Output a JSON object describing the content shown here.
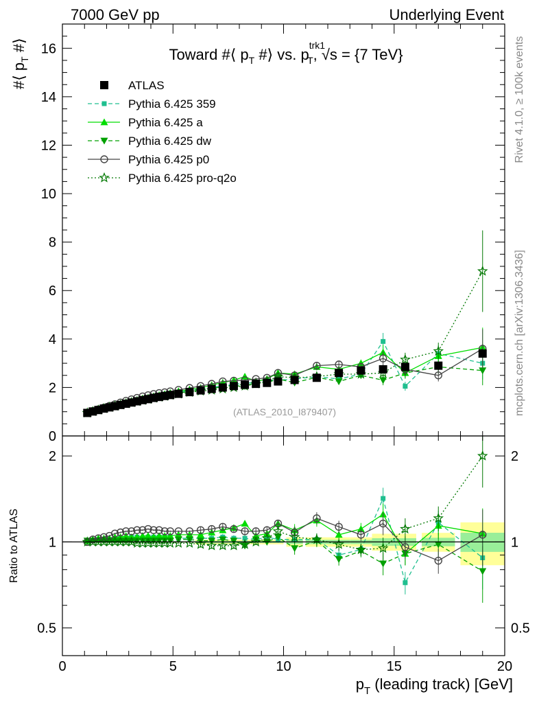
{
  "header": {
    "left": "7000 GeV pp",
    "right": "Underlying Event"
  },
  "side_labels": {
    "rivet": "Rivet 4.1.0, ≥ 100k events",
    "mcplots": "mcplots.cern.ch [arXiv:1306.3436]"
  },
  "chart_data": [
    {
      "type": "scatter",
      "title": {
        "prefix": "Toward #⟨ p",
        "sub1": "T",
        "mid1": " #⟩ vs. p",
        "sup2": "trk1",
        "sub2": "T",
        "suffix": ", √s = {7 TeV}"
      },
      "ylabel": {
        "prefix": "#⟨ p",
        "sub": "T",
        "suffix": " #⟩"
      },
      "watermark": "(ATLAS_2010_I879407)",
      "xlim": [
        0,
        20
      ],
      "ylim": [
        0,
        17
      ],
      "y_ticks": [
        "0",
        "2",
        "4",
        "6",
        "8",
        "10",
        "12",
        "14",
        "16"
      ],
      "x_ticks": [
        "0",
        "5",
        "10",
        "15",
        "20"
      ],
      "x": [
        1.125,
        1.375,
        1.625,
        1.875,
        2.125,
        2.375,
        2.625,
        2.875,
        3.125,
        3.375,
        3.625,
        3.875,
        4.125,
        4.375,
        4.625,
        4.875,
        5.25,
        5.75,
        6.25,
        6.75,
        7.25,
        7.75,
        8.25,
        8.75,
        9.25,
        9.75,
        10.5,
        11.5,
        12.5,
        13.5,
        14.5,
        15.5,
        17.0,
        19.0
      ],
      "series": [
        {
          "name": "ATLAS",
          "style": "data",
          "color": "#000000",
          "values": [
            0.95,
            1.01,
            1.07,
            1.13,
            1.18,
            1.23,
            1.28,
            1.33,
            1.38,
            1.43,
            1.48,
            1.52,
            1.57,
            1.61,
            1.65,
            1.69,
            1.74,
            1.81,
            1.88,
            1.94,
            2.0,
            2.06,
            2.11,
            2.15,
            2.19,
            2.25,
            2.31,
            2.4,
            2.6,
            2.7,
            2.75,
            2.85,
            2.9,
            3.4
          ]
        },
        {
          "name": "Pythia 6.425 359",
          "style": "square-dashed",
          "color": "#1fbf8f",
          "values": [
            0.96,
            1.02,
            1.09,
            1.15,
            1.2,
            1.26,
            1.32,
            1.37,
            1.43,
            1.48,
            1.53,
            1.58,
            1.63,
            1.67,
            1.72,
            1.76,
            1.8,
            1.87,
            1.94,
            2.0,
            2.07,
            2.12,
            2.18,
            2.2,
            2.28,
            2.3,
            2.35,
            2.45,
            2.35,
            2.55,
            3.9,
            2.05,
            3.4,
            3.0
          ]
        },
        {
          "name": "Pythia 6.425 a",
          "style": "triangle-solid",
          "color": "#00dd00",
          "values": [
            0.96,
            1.03,
            1.1,
            1.16,
            1.22,
            1.28,
            1.33,
            1.39,
            1.44,
            1.49,
            1.55,
            1.59,
            1.64,
            1.69,
            1.73,
            1.78,
            1.85,
            1.92,
            1.99,
            2.1,
            2.2,
            2.3,
            2.45,
            2.25,
            2.35,
            2.6,
            2.55,
            2.85,
            2.75,
            3.0,
            3.45,
            2.6,
            3.3,
            3.65
          ]
        },
        {
          "name": "Pythia 6.425 dw",
          "style": "tridown-dashed",
          "color": "#00a000",
          "values": [
            0.96,
            1.02,
            1.08,
            1.14,
            1.19,
            1.24,
            1.29,
            1.34,
            1.39,
            1.44,
            1.49,
            1.53,
            1.58,
            1.62,
            1.67,
            1.71,
            1.77,
            1.84,
            1.9,
            1.96,
            2.03,
            2.08,
            2.05,
            2.2,
            2.2,
            2.35,
            2.2,
            2.42,
            2.25,
            2.5,
            2.3,
            2.6,
            2.85,
            2.7
          ]
        },
        {
          "name": "Pythia 6.425 p0",
          "style": "circle-solid",
          "color": "#444444",
          "values": [
            0.95,
            1.03,
            1.1,
            1.17,
            1.24,
            1.31,
            1.38,
            1.45,
            1.51,
            1.57,
            1.63,
            1.68,
            1.73,
            1.77,
            1.8,
            1.84,
            1.9,
            1.98,
            2.06,
            2.15,
            2.25,
            2.28,
            2.3,
            2.35,
            2.4,
            2.6,
            2.5,
            2.9,
            2.95,
            2.85,
            3.2,
            2.75,
            2.5,
            3.6
          ]
        },
        {
          "name": "Pythia 6.425 pro-q2o",
          "style": "star-dotted",
          "color": "#007700",
          "values": [
            0.95,
            1.01,
            1.07,
            1.13,
            1.18,
            1.23,
            1.28,
            1.33,
            1.38,
            1.42,
            1.47,
            1.51,
            1.56,
            1.6,
            1.64,
            1.68,
            1.73,
            1.8,
            1.85,
            1.89,
            1.94,
            2.0,
            2.06,
            2.15,
            2.25,
            2.45,
            2.4,
            2.45,
            2.55,
            2.55,
            2.6,
            3.15,
            3.5,
            6.8
          ]
        }
      ]
    },
    {
      "type": "scatter",
      "ylabel": "Ratio to ATLAS",
      "xlabel": {
        "prefix": "p",
        "sub": "T",
        "suffix": " (leading track) [GeV]"
      },
      "ylim": [
        0.4,
        2.35
      ],
      "yscale": "log",
      "y_ticks": [
        "0.5",
        "1",
        "2"
      ],
      "ratios": {
        "Pythia 6.425 359": [
          1.01,
          1.01,
          1.02,
          1.02,
          1.02,
          1.02,
          1.03,
          1.03,
          1.04,
          1.04,
          1.03,
          1.04,
          1.04,
          1.04,
          1.04,
          1.04,
          1.03,
          1.03,
          1.03,
          1.03,
          1.04,
          1.03,
          1.03,
          1.02,
          1.04,
          1.02,
          1.02,
          1.02,
          0.9,
          0.94,
          1.42,
          0.72,
          1.17,
          0.88
        ],
        "Pythia 6.425 a": [
          1.01,
          1.02,
          1.03,
          1.03,
          1.03,
          1.04,
          1.04,
          1.05,
          1.04,
          1.04,
          1.05,
          1.05,
          1.04,
          1.05,
          1.05,
          1.05,
          1.06,
          1.06,
          1.06,
          1.08,
          1.1,
          1.12,
          1.16,
          1.05,
          1.07,
          1.16,
          1.1,
          1.19,
          1.06,
          1.11,
          1.25,
          0.91,
          1.14,
          1.07
        ],
        "Pythia 6.425 dw": [
          1.01,
          1.01,
          1.01,
          1.01,
          1.01,
          1.01,
          1.01,
          1.01,
          1.01,
          1.01,
          1.01,
          1.01,
          1.01,
          1.01,
          1.01,
          1.01,
          1.02,
          1.02,
          1.01,
          1.01,
          1.02,
          1.01,
          0.97,
          1.02,
          1.0,
          1.04,
          0.95,
          1.01,
          0.87,
          0.93,
          0.84,
          0.91,
          0.98,
          0.79
        ],
        "Pythia 6.425 p0": [
          1.0,
          1.02,
          1.03,
          1.04,
          1.05,
          1.07,
          1.08,
          1.09,
          1.09,
          1.1,
          1.1,
          1.11,
          1.1,
          1.1,
          1.09,
          1.09,
          1.09,
          1.09,
          1.1,
          1.11,
          1.13,
          1.11,
          1.09,
          1.09,
          1.1,
          1.16,
          1.08,
          1.21,
          1.13,
          1.06,
          1.16,
          0.96,
          0.86,
          1.06
        ],
        "Pythia 6.425 pro-q2o": [
          1.0,
          1.0,
          1.0,
          1.0,
          1.0,
          1.0,
          1.0,
          1.0,
          1.0,
          0.99,
          0.99,
          0.99,
          0.99,
          0.99,
          0.99,
          0.99,
          0.99,
          0.99,
          0.98,
          0.97,
          0.97,
          0.97,
          0.98,
          1.0,
          1.03,
          1.09,
          1.04,
          1.02,
          0.98,
          0.94,
          0.95,
          1.11,
          1.21,
          2.0
        ]
      }
    }
  ]
}
